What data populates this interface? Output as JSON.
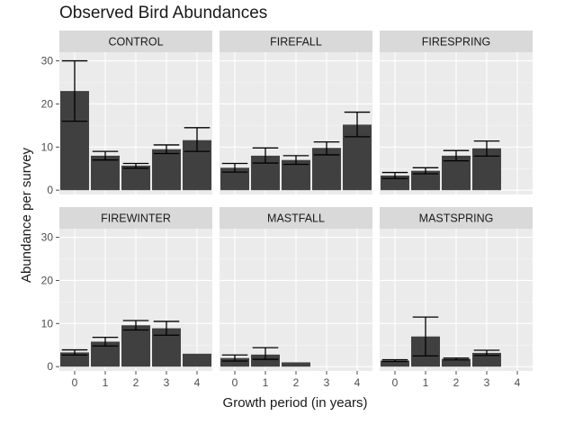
{
  "chart_data": {
    "type": "bar",
    "title": "Observed Bird Abundances",
    "xlabel": "Growth period (in years)",
    "ylabel": "Abundance per survey",
    "x_categories": [
      "0",
      "1",
      "2",
      "3",
      "4"
    ],
    "y_ticks": [
      "0",
      "10",
      "20",
      "30"
    ],
    "ylim": [
      -1,
      32
    ],
    "grid": true,
    "facets": [
      {
        "name": "CONTROL",
        "values": [
          23,
          8,
          5.7,
          9.5,
          11.6
        ],
        "err_low": [
          16,
          7,
          5.1,
          8.5,
          9
        ],
        "err_high": [
          30,
          9,
          6.2,
          10.5,
          14.5
        ]
      },
      {
        "name": "FIREFALL",
        "values": [
          5.2,
          8,
          7,
          9.8,
          15.2
        ],
        "err_low": [
          4.2,
          6.3,
          6,
          8.2,
          12.4
        ],
        "err_high": [
          6.2,
          9.8,
          8,
          11.2,
          18.1
        ]
      },
      {
        "name": "FIRESPRING",
        "values": [
          3.4,
          4.5,
          8,
          9.7,
          null
        ],
        "err_low": [
          2.7,
          3.8,
          6.8,
          7.9,
          null
        ],
        "err_high": [
          4.1,
          5.2,
          9.2,
          11.4,
          null
        ]
      },
      {
        "name": "FIREWINTER",
        "values": [
          3.3,
          5.8,
          9.6,
          8.9,
          3
        ],
        "err_low": [
          2.7,
          4.8,
          8.5,
          7.3,
          null
        ],
        "err_high": [
          3.9,
          6.8,
          10.7,
          10.5,
          null
        ]
      },
      {
        "name": "MASTFALL",
        "values": [
          2,
          2.8,
          1,
          null,
          null
        ],
        "err_low": [
          1.3,
          1.7,
          null,
          null,
          null
        ],
        "err_high": [
          2.7,
          4.4,
          null,
          null,
          null
        ]
      },
      {
        "name": "MASTSPRING",
        "values": [
          1.4,
          7,
          1.8,
          3.2,
          null
        ],
        "err_low": [
          1.2,
          2.5,
          1.6,
          2.6,
          null
        ],
        "err_high": [
          1.6,
          11.5,
          2,
          3.8,
          null
        ]
      }
    ]
  }
}
